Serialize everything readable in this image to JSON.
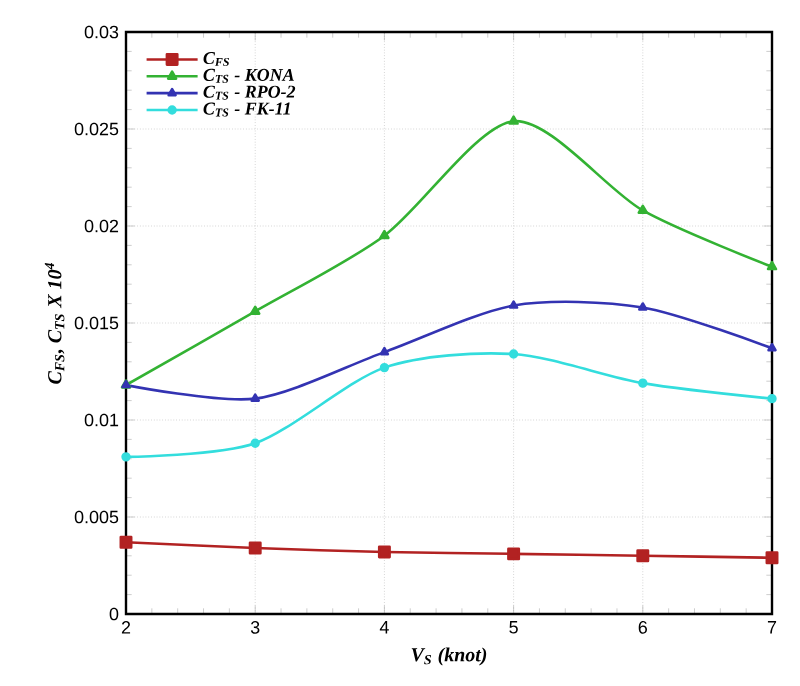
{
  "chart_data": {
    "type": "line",
    "xlabel": "V$_{S}$ (knot)",
    "ylabel": "C$_{FS}$, C$_{TS}$ X 10$^{4}$",
    "x": [
      2,
      3,
      4,
      5,
      6,
      7
    ],
    "series": [
      {
        "name": "C$_{FS}$",
        "color": "#b22222",
        "marker": "square",
        "values": [
          0.0037,
          0.0034,
          0.0032,
          0.0031,
          0.003,
          0.0029
        ]
      },
      {
        "name": "C$_{TS}$ - KONA",
        "color": "#33b233",
        "marker": "triangle",
        "values": [
          0.0118,
          0.0156,
          0.0195,
          0.0254,
          0.0208,
          0.0179
        ]
      },
      {
        "name": "C$_{TS}$ - RPO-2",
        "color": "#3333b2",
        "marker": "triangle",
        "values": [
          0.0118,
          0.0111,
          0.0135,
          0.0159,
          0.0158,
          0.0137
        ]
      },
      {
        "name": "C$_{TS}$ - FK-11",
        "color": "#33dddd",
        "marker": "circle",
        "values": [
          0.0081,
          0.0088,
          0.0127,
          0.0134,
          0.0119,
          0.0111
        ]
      }
    ],
    "xlim": [
      2,
      7
    ],
    "xticks": [
      2,
      3,
      4,
      5,
      6,
      7
    ],
    "ylim": [
      0,
      0.03
    ],
    "yticks": [
      0,
      0.005,
      0.01,
      0.015,
      0.02,
      0.025,
      0.03
    ],
    "grid": true,
    "legend": "top left",
    "line_style": "solid"
  }
}
